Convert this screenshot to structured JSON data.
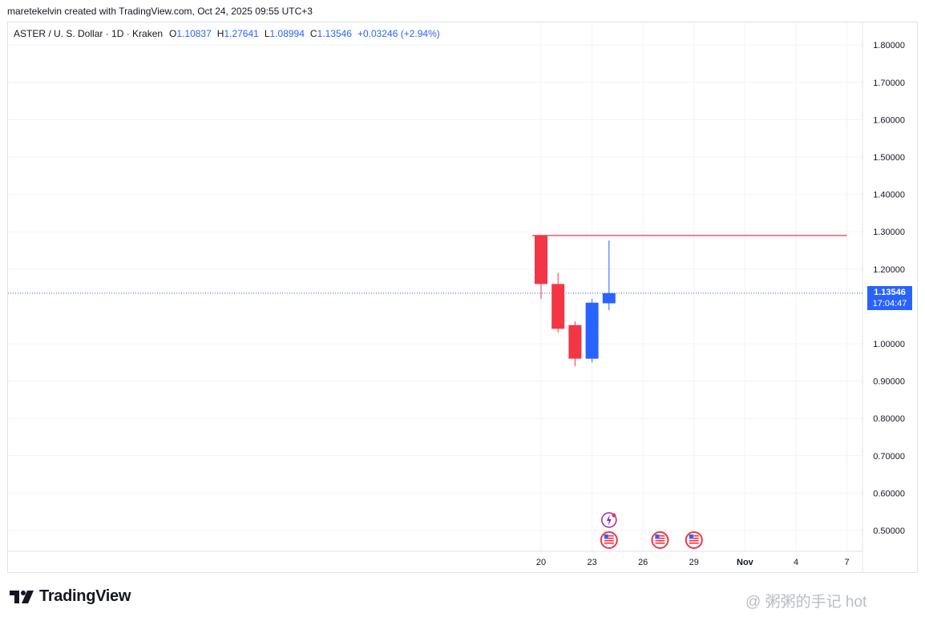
{
  "attribution": "maretekelvin created with TradingView.com, Oct 24, 2025 09:55 UTC+3",
  "legend": {
    "symbol": "ASTER / U. S. Dollar · 1D · Kraken",
    "open_label": "O",
    "open": "1.10837",
    "high_label": "H",
    "high": "1.27641",
    "low_label": "L",
    "low": "1.08994",
    "close_label": "C",
    "close": "1.13546",
    "change": "+0.03246 (+2.94%)"
  },
  "price_badge": {
    "price": "1.13546",
    "countdown": "17:04:47"
  },
  "footer": {
    "brand": "TradingView"
  },
  "watermark": {
    "text": "@ 粥粥的手记 hot"
  },
  "colors": {
    "up": "#2962ff",
    "down": "#f23645",
    "grid": "#f0f3fa",
    "resistance": "#f23645",
    "text": "#131722"
  },
  "icons": {
    "event_lightning": "lightning-event-icon",
    "event_us": "us-flag-event-icon"
  },
  "chart_data": {
    "type": "candlestick",
    "title": "",
    "xlabel": "",
    "ylabel": "",
    "ylim": [
      0.43,
      1.86
    ],
    "y_ticks": [
      "1.80000",
      "1.70000",
      "1.60000",
      "1.50000",
      "1.40000",
      "1.30000",
      "1.20000",
      "1.00000",
      "0.90000",
      "0.80000",
      "0.70000",
      "0.60000",
      "0.50000"
    ],
    "x_ticks": [
      {
        "label": "20",
        "day": 20
      },
      {
        "label": "23",
        "day": 23
      },
      {
        "label": "26",
        "day": 26
      },
      {
        "label": "29",
        "day": 29
      },
      {
        "label": "Nov",
        "day": 32
      },
      {
        "label": "4",
        "day": 35
      },
      {
        "label": "7",
        "day": 38
      }
    ],
    "candles": [
      {
        "date": "2025-10-20",
        "day": 20,
        "open": 1.29,
        "high": 1.29,
        "low": 1.12,
        "close": 1.16
      },
      {
        "date": "2025-10-21",
        "day": 21,
        "open": 1.16,
        "high": 1.19,
        "low": 1.03,
        "close": 1.04
      },
      {
        "date": "2025-10-22",
        "day": 22,
        "open": 1.05,
        "high": 1.06,
        "low": 0.94,
        "close": 0.96
      },
      {
        "date": "2025-10-23",
        "day": 23,
        "open": 0.96,
        "high": 1.12,
        "low": 0.95,
        "close": 1.11
      },
      {
        "date": "2025-10-24",
        "day": 24,
        "open": 1.10837,
        "high": 1.27641,
        "low": 1.08994,
        "close": 1.13546
      }
    ],
    "horizontal_lines": [
      {
        "name": "resistance",
        "price": 1.29,
        "from_day": 19.9,
        "to_day": 38
      }
    ],
    "last_price": 1.13546,
    "grid": true,
    "events": [
      {
        "day": 24,
        "type": "lightning"
      },
      {
        "day": 24,
        "type": "us-flag"
      },
      {
        "day": 27,
        "type": "us-flag"
      },
      {
        "day": 29,
        "type": "us-flag"
      }
    ]
  }
}
